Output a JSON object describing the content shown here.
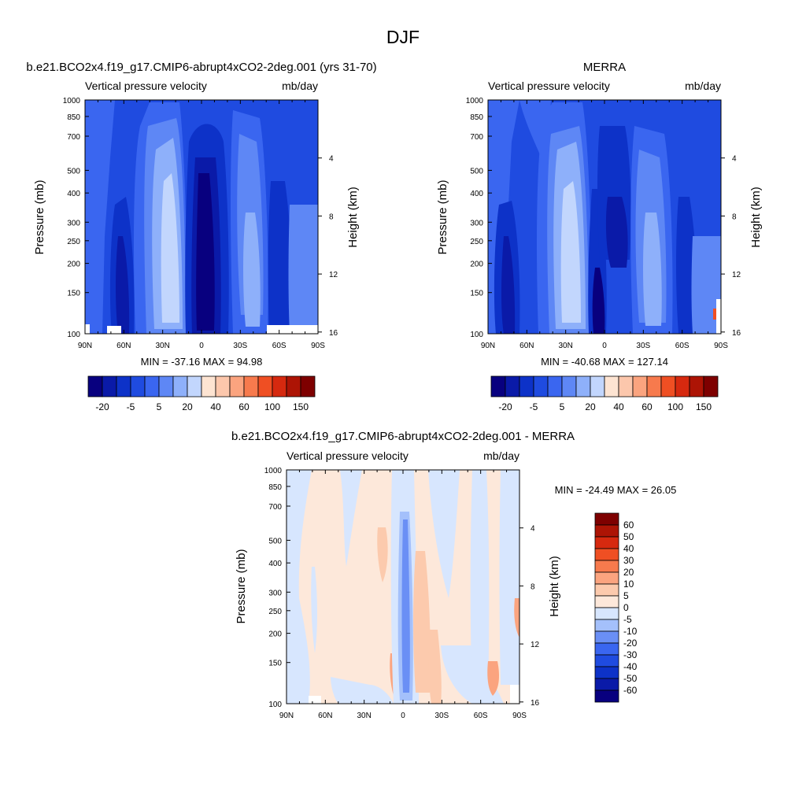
{
  "figure_title": "DJF",
  "chart_data": [
    {
      "type": "heatmap",
      "title": "b.e21.BCO2x4.f19_g17.CMIP6-abrupt4xCO2-2deg.001 (yrs 31-70)",
      "left_subtitle": "Vertical pressure velocity",
      "right_subtitle": "mb/day",
      "xlabel": "",
      "ylabel": "Pressure (mb)",
      "ylabel_right": "Height (km)",
      "x_ticks": [
        "90N",
        "60N",
        "30N",
        "0",
        "30S",
        "60S",
        "90S"
      ],
      "y_ticks": [
        100,
        150,
        200,
        250,
        300,
        400,
        500,
        700,
        850,
        1000
      ],
      "y_scale": "log",
      "y_right_ticks": [
        16,
        12,
        8,
        4
      ],
      "stats_text": "MIN = -37.16  MAX =  94.98",
      "min": -37.16,
      "max": 94.98,
      "colorbar_labels": [
        "-20",
        "-5",
        "5",
        "20",
        "40",
        "60",
        "100",
        "150"
      ],
      "colorbar_orientation": "horizontal"
    },
    {
      "type": "heatmap",
      "title": "MERRA",
      "left_subtitle": "Vertical pressure velocity",
      "right_subtitle": "mb/day",
      "xlabel": "",
      "ylabel": "Pressure (mb)",
      "ylabel_right": "Height (km)",
      "x_ticks": [
        "90N",
        "60N",
        "30N",
        "0",
        "30S",
        "60S",
        "90S"
      ],
      "y_ticks": [
        100,
        150,
        200,
        250,
        300,
        400,
        500,
        700,
        850,
        1000
      ],
      "y_scale": "log",
      "y_right_ticks": [
        16,
        12,
        8,
        4
      ],
      "stats_text": "MIN = -40.68  MAX = 127.14",
      "min": -40.68,
      "max": 127.14,
      "colorbar_labels": [
        "-20",
        "-5",
        "5",
        "20",
        "40",
        "60",
        "100",
        "150"
      ],
      "colorbar_orientation": "horizontal"
    },
    {
      "type": "heatmap",
      "title": "b.e21.BCO2x4.f19_g17.CMIP6-abrupt4xCO2-2deg.001 - MERRA",
      "left_subtitle": "Vertical pressure velocity",
      "right_subtitle": "mb/day",
      "xlabel": "",
      "ylabel": "Pressure (mb)",
      "ylabel_right": "Height (km)",
      "x_ticks": [
        "90N",
        "60N",
        "30N",
        "0",
        "30S",
        "60S",
        "90S"
      ],
      "y_ticks": [
        100,
        150,
        200,
        250,
        300,
        400,
        500,
        700,
        850,
        1000
      ],
      "y_scale": "log",
      "y_right_ticks": [
        16,
        12,
        8,
        4
      ],
      "stats_text": "MIN = -24.49  MAX =  26.05",
      "min": -24.49,
      "max": 26.05,
      "colorbar_labels": [
        "60",
        "50",
        "40",
        "30",
        "20",
        "10",
        "5",
        "0",
        "-5",
        "-10",
        "-20",
        "-30",
        "-40",
        "-50",
        "-60"
      ],
      "colorbar_orientation": "vertical"
    }
  ],
  "colors": {
    "abs_scale": [
      "#08007f",
      "#0a1aa8",
      "#0d32c8",
      "#1f4be0",
      "#3a66f0",
      "#5e87f5",
      "#8eb0fa",
      "#c2d6fd",
      "#fde4d2",
      "#fcc7ac",
      "#fba47f",
      "#f77a4d",
      "#ef4f23",
      "#d6290f",
      "#ad1405",
      "#7e0000"
    ],
    "diff_scale": [
      "#08007f",
      "#0a1aa8",
      "#0d32c8",
      "#1f4be0",
      "#3a66f0",
      "#6a8ff5",
      "#a4c0fb",
      "#d7e6fe",
      "#fde8da",
      "#fccaad",
      "#fba47f",
      "#f77a4d",
      "#ef4f23",
      "#d6290f",
      "#ad1405",
      "#7e0000"
    ]
  }
}
